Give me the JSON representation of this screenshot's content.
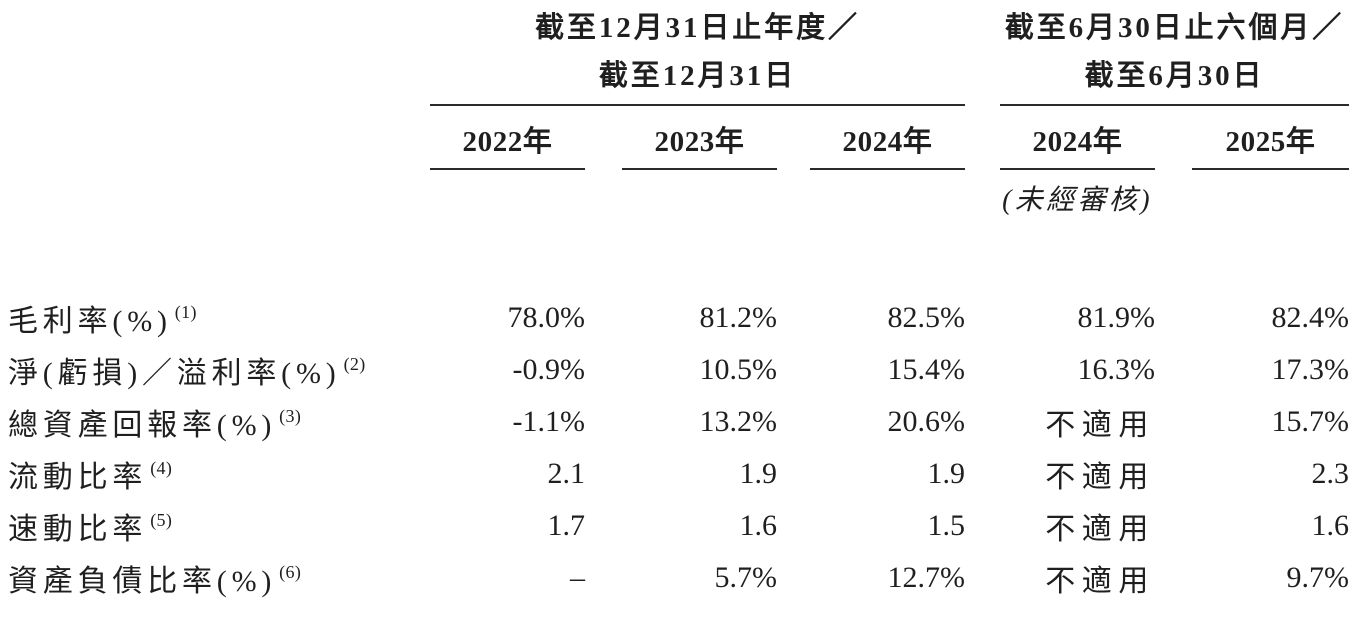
{
  "table": {
    "groups": [
      {
        "title1": "截至12月31日止年度／",
        "title2": "截至12月31日",
        "years": [
          "2022年",
          "2023年",
          "2024年"
        ]
      },
      {
        "title1": "截至6月30日止六個月／",
        "title2": "截至6月30日",
        "years": [
          "2024年",
          "2025年"
        ],
        "note": "(未經審核)"
      }
    ],
    "rows": [
      {
        "label": "毛利率(%)",
        "footnote": "(1)",
        "values": [
          "78.0%",
          "81.2%",
          "82.5%",
          "81.9%",
          "82.4%"
        ]
      },
      {
        "label": "淨(虧損)／溢利率(%)",
        "footnote": "(2)",
        "values": [
          "-0.9%",
          "10.5%",
          "15.4%",
          "16.3%",
          "17.3%"
        ]
      },
      {
        "label": "總資產回報率(%)",
        "footnote": "(3)",
        "values": [
          "-1.1%",
          "13.2%",
          "20.6%",
          "不適用",
          "15.7%"
        ]
      },
      {
        "label": "流動比率",
        "footnote": "(4)",
        "values": [
          "2.1",
          "1.9",
          "1.9",
          "不適用",
          "2.3"
        ]
      },
      {
        "label": "速動比率",
        "footnote": "(5)",
        "values": [
          "1.7",
          "1.6",
          "1.5",
          "不適用",
          "1.6"
        ]
      },
      {
        "label": "資產負債比率(%)",
        "footnote": "(6)",
        "values": [
          "–",
          "5.7%",
          "12.7%",
          "不適用",
          "9.7%"
        ]
      }
    ],
    "colors": {
      "text": "#1f1f1f",
      "rule": "#2b2b2b"
    }
  }
}
